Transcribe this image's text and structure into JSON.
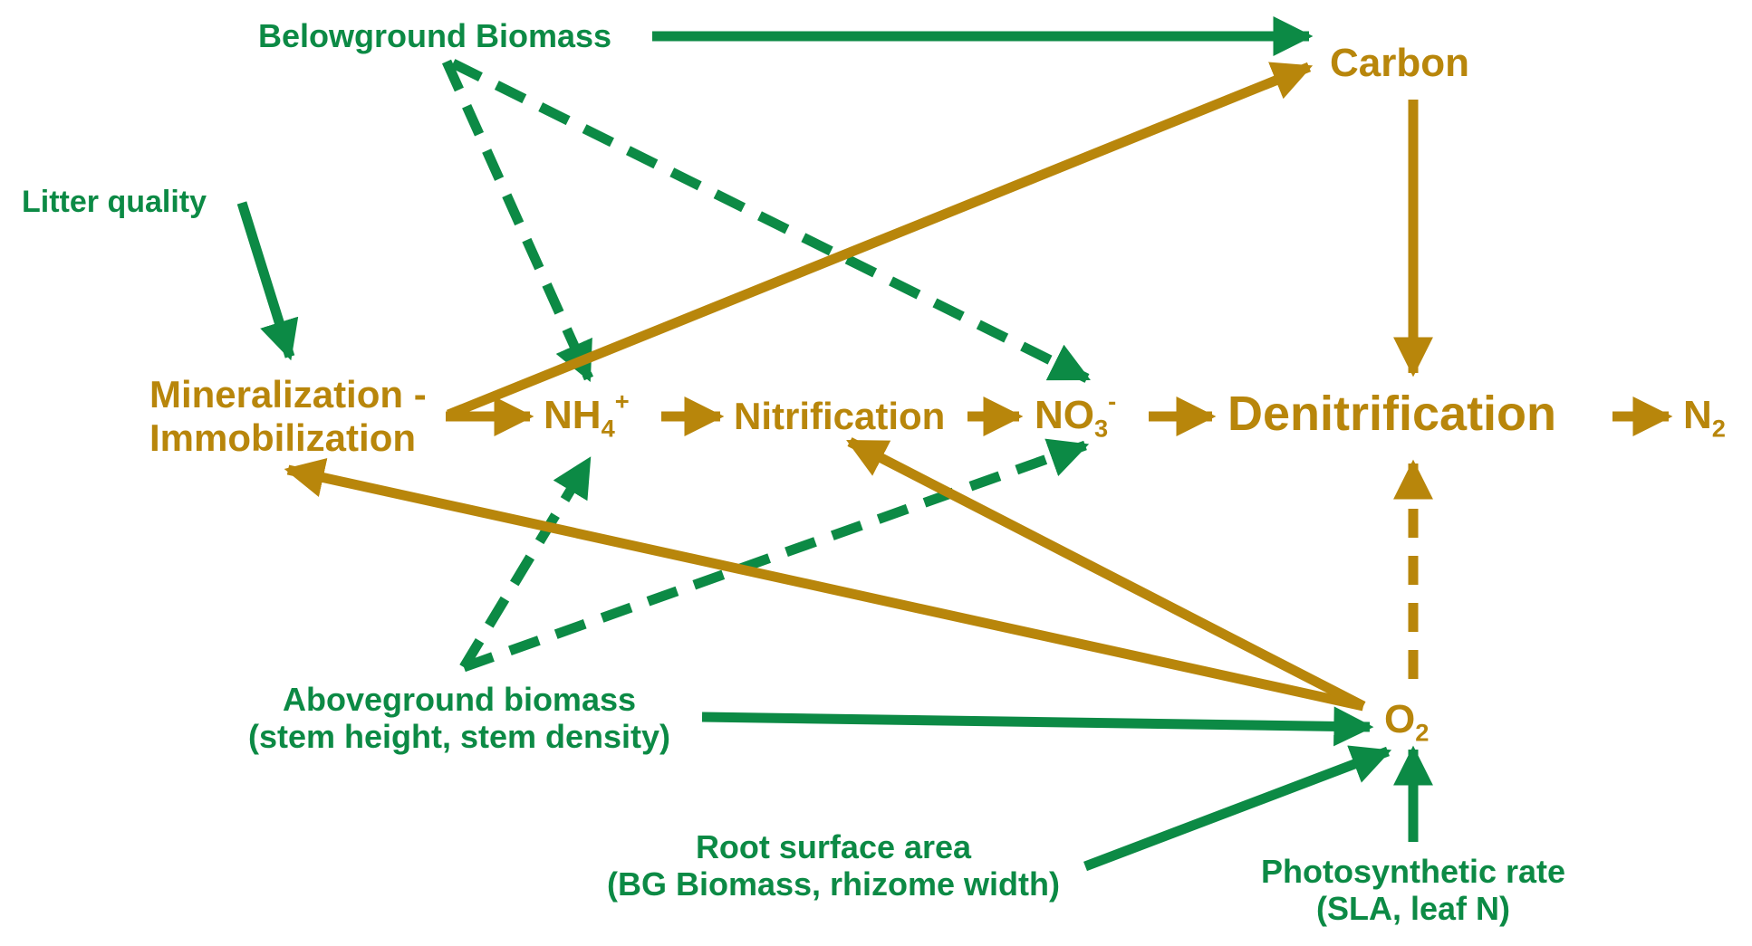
{
  "colors": {
    "plant": "#0c8a45",
    "process": "#b8860b"
  },
  "nodes": {
    "belowground_biomass": "Belowground Biomass",
    "carbon": "Carbon",
    "litter_quality": "Litter quality",
    "mineralization_line1": "Mineralization -",
    "mineralization_line2": "Immobilization",
    "nh4": "NH",
    "nh4_sub": "4",
    "nh4_sup": "+",
    "nitrification": "Nitrification",
    "no3": "NO",
    "no3_sub": "3",
    "no3_sup": "-",
    "denitrification": "Denitrification",
    "n2": "N",
    "n2_sub": "2",
    "o2": "O",
    "o2_sub": "2",
    "aboveground_line1": "Aboveground biomass",
    "aboveground_line2": "(stem height, stem density)",
    "root_line1": "Root surface area",
    "root_line2": "(BG Biomass, rhizome width)",
    "photo_line1": "Photosynthetic rate",
    "photo_line2": "(SLA, leaf N)"
  },
  "edges": [
    {
      "from": "belowground_biomass",
      "to": "carbon",
      "color": "plant",
      "style": "solid"
    },
    {
      "from": "belowground_biomass",
      "to": "nh4",
      "color": "plant",
      "style": "dashed"
    },
    {
      "from": "belowground_biomass",
      "to": "no3",
      "color": "plant",
      "style": "dashed"
    },
    {
      "from": "litter_quality",
      "to": "mineralization",
      "color": "plant",
      "style": "solid"
    },
    {
      "from": "mineralization",
      "to": "carbon",
      "color": "process",
      "style": "solid"
    },
    {
      "from": "mineralization",
      "to": "nh4",
      "color": "process",
      "style": "solid"
    },
    {
      "from": "nh4",
      "to": "nitrification",
      "color": "process",
      "style": "solid"
    },
    {
      "from": "nitrification",
      "to": "no3",
      "color": "process",
      "style": "solid"
    },
    {
      "from": "no3",
      "to": "denitrification",
      "color": "process",
      "style": "solid"
    },
    {
      "from": "denitrification",
      "to": "n2",
      "color": "process",
      "style": "solid"
    },
    {
      "from": "carbon",
      "to": "denitrification",
      "color": "process",
      "style": "solid"
    },
    {
      "from": "o2",
      "to": "denitrification",
      "color": "process",
      "style": "dashed"
    },
    {
      "from": "o2",
      "to": "mineralization",
      "color": "process",
      "style": "solid"
    },
    {
      "from": "o2",
      "to": "nitrification",
      "color": "process",
      "style": "solid"
    },
    {
      "from": "aboveground_biomass",
      "to": "nh4",
      "color": "plant",
      "style": "dashed"
    },
    {
      "from": "aboveground_biomass",
      "to": "no3",
      "color": "plant",
      "style": "dashed"
    },
    {
      "from": "aboveground_biomass",
      "to": "o2",
      "color": "plant",
      "style": "solid"
    },
    {
      "from": "root_surface_area",
      "to": "o2",
      "color": "plant",
      "style": "solid"
    },
    {
      "from": "photosynthetic_rate",
      "to": "o2",
      "color": "plant",
      "style": "solid"
    }
  ]
}
